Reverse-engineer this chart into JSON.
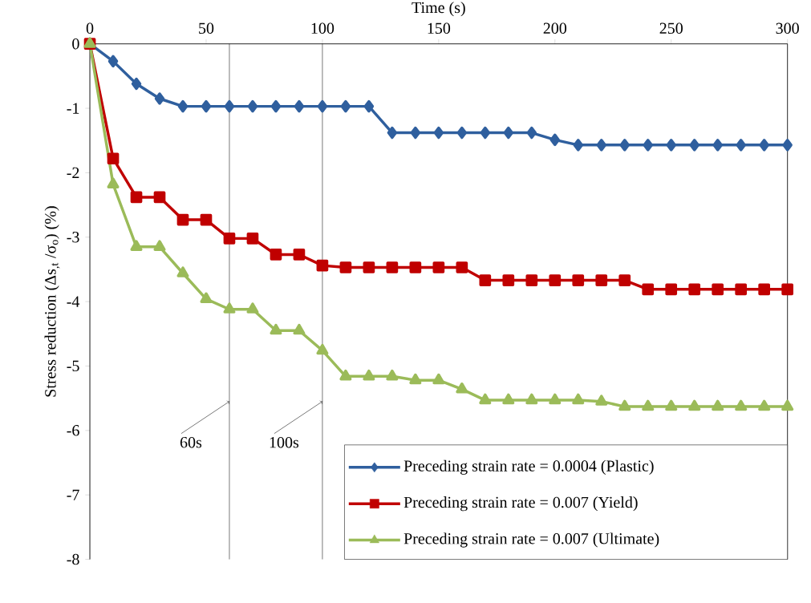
{
  "chart_data": {
    "type": "line",
    "xlabel": "Time (s)",
    "ylabel": "Stress reduction (Δs$_{,t}$ /σ$_{o}$)  (%)",
    "x": [
      0,
      10,
      20,
      30,
      40,
      50,
      60,
      70,
      80,
      90,
      100,
      110,
      120,
      130,
      140,
      150,
      160,
      170,
      180,
      190,
      200,
      210,
      220,
      230,
      240,
      250,
      260,
      270,
      280,
      290,
      300
    ],
    "series": [
      {
        "name": "Preceding strain rate = 0.0004 (Plastic)",
        "color": "#2f5f9e",
        "marker": "diamond",
        "values": [
          0,
          -0.27,
          -0.62,
          -0.85,
          -0.97,
          -0.97,
          -0.97,
          -0.97,
          -0.97,
          -0.97,
          -0.97,
          -0.97,
          -0.97,
          -1.38,
          -1.38,
          -1.38,
          -1.38,
          -1.38,
          -1.38,
          -1.38,
          -1.49,
          -1.57,
          -1.57,
          -1.57,
          -1.57,
          -1.57,
          -1.57,
          -1.57,
          -1.57,
          -1.57,
          -1.57
        ]
      },
      {
        "name": "Preceding strain rate = 0.007 (Yield)",
        "color": "#c00000",
        "marker": "square",
        "values": [
          0,
          -1.78,
          -2.38,
          -2.38,
          -2.73,
          -2.73,
          -3.02,
          -3.02,
          -3.27,
          -3.27,
          -3.44,
          -3.47,
          -3.47,
          -3.47,
          -3.47,
          -3.47,
          -3.47,
          -3.67,
          -3.67,
          -3.67,
          -3.67,
          -3.67,
          -3.67,
          -3.67,
          -3.81,
          -3.81,
          -3.81,
          -3.81,
          -3.81,
          -3.81,
          -3.81
        ]
      },
      {
        "name": "Preceding strain rate = 0.007 (Ultimate)",
        "color": "#9bbb59",
        "marker": "triangle",
        "values": [
          0,
          -2.18,
          -3.15,
          -3.15,
          -3.56,
          -3.96,
          -4.12,
          -4.12,
          -4.45,
          -4.45,
          -4.76,
          -5.16,
          -5.16,
          -5.16,
          -5.22,
          -5.22,
          -5.36,
          -5.53,
          -5.53,
          -5.53,
          -5.53,
          -5.53,
          -5.55,
          -5.63,
          -5.63,
          -5.63,
          -5.63,
          -5.63,
          -5.63,
          -5.63,
          -5.63
        ]
      }
    ],
    "xlim": [
      0,
      300
    ],
    "xticks": [
      0,
      50,
      100,
      150,
      200,
      250,
      300
    ],
    "ylim": [
      -8,
      0
    ],
    "yticks": [
      -8,
      -7,
      -6,
      -5,
      -4,
      -3,
      -2,
      -1,
      0
    ],
    "ref_lines": [
      {
        "axis": "x",
        "value": 60,
        "label": "60s",
        "color": "#000000"
      },
      {
        "axis": "x",
        "value": 100,
        "label": "100s",
        "color": "#000000"
      }
    ],
    "legend": "bottom right",
    "grid": false,
    "line_style": "solid"
  }
}
